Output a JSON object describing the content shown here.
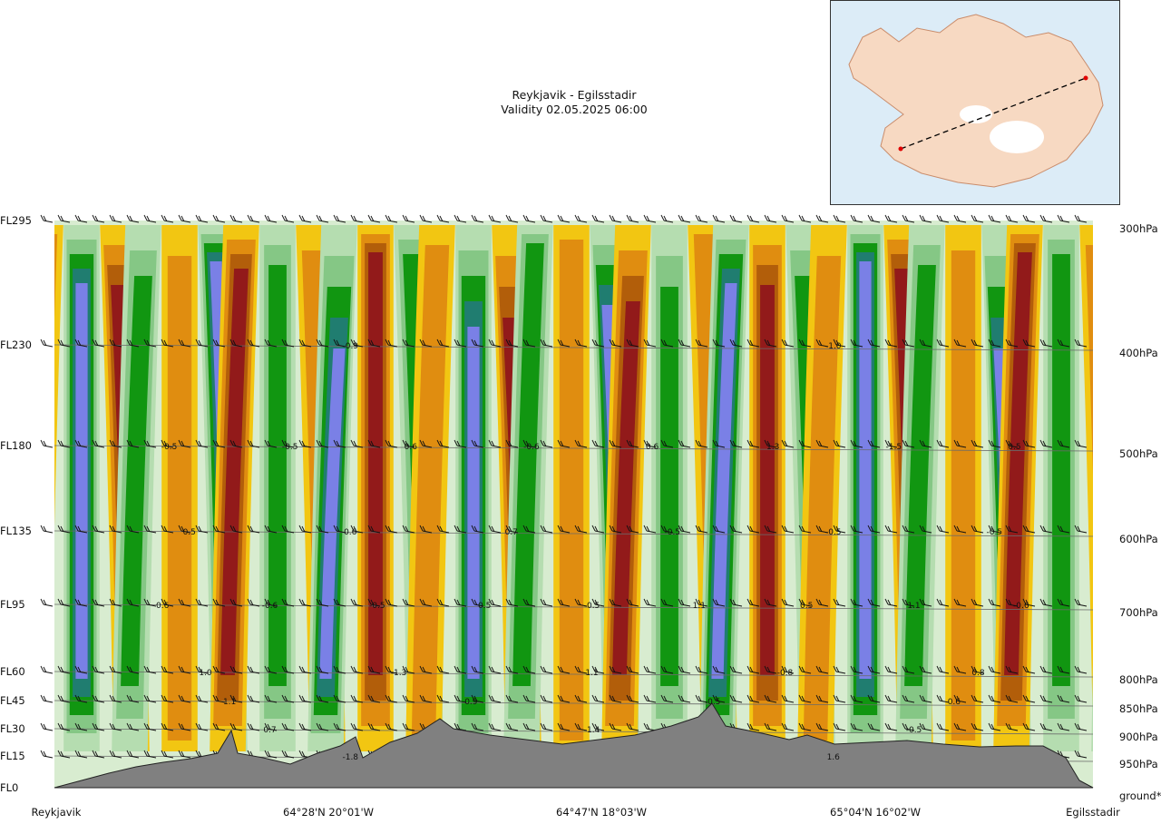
{
  "title": {
    "route": "Reykjavik - Egilsstadir",
    "validity": "Validity 02.05.2025 06:00"
  },
  "chart_data": {
    "type": "heatmap",
    "title": "Reykjavik - Egilsstadir",
    "subtitle": "Validity 02.05.2025 06:00",
    "left_axis_levels": [
      "FL295",
      "FL230",
      "FL180",
      "FL135",
      "FL95",
      "FL60",
      "FL45",
      "FL30",
      "FL15",
      "FL0"
    ],
    "right_axis_levels": [
      "300hPa",
      "400hPa",
      "500hPa",
      "600hPa",
      "700hPa",
      "800hPa",
      "850hPa",
      "900hPa",
      "950hPa",
      "ground*"
    ],
    "x_labels": [
      "Reykjavik",
      "64°28'N 20°01'W",
      "64°47'N 18°03'W",
      "65°04'N 16°02'W",
      "Egilsstadir"
    ],
    "value_labels": [
      {
        "level": "FL230",
        "text": "-0.9"
      },
      {
        "level": "FL230",
        "text": "-1.0"
      },
      {
        "level": "FL180",
        "text": "-0.5"
      },
      {
        "level": "FL180",
        "text": "-0.5"
      },
      {
        "level": "FL180",
        "text": "0.6"
      },
      {
        "level": "FL180",
        "text": "-0.6"
      },
      {
        "level": "FL180",
        "text": "0.6"
      },
      {
        "level": "FL180",
        "text": "1.3"
      },
      {
        "level": "FL180",
        "text": "-1.5"
      },
      {
        "level": "FL180",
        "text": "0.5"
      },
      {
        "level": "FL135",
        "text": "0.5"
      },
      {
        "level": "FL135",
        "text": "0.6"
      },
      {
        "level": "FL135",
        "text": "0.7"
      },
      {
        "level": "FL135",
        "text": "-0.5"
      },
      {
        "level": "FL135",
        "text": "-0.5"
      },
      {
        "level": "FL135",
        "text": "-0.5"
      },
      {
        "level": "FL95",
        "text": "0.6"
      },
      {
        "level": "FL95",
        "text": "-0.6"
      },
      {
        "level": "FL95",
        "text": "-0.5"
      },
      {
        "level": "FL95",
        "text": "0.5"
      },
      {
        "level": "FL95",
        "text": "-0.5"
      },
      {
        "level": "FL95",
        "text": "1.1"
      },
      {
        "level": "FL95",
        "text": "0.5"
      },
      {
        "level": "FL95",
        "text": "1.1"
      },
      {
        "level": "FL95",
        "text": "-0.6"
      },
      {
        "level": "FL60",
        "text": "1.0"
      },
      {
        "level": "FL60",
        "text": "-1.3"
      },
      {
        "level": "FL60",
        "text": "1.1"
      },
      {
        "level": "FL60",
        "text": "-0.8"
      },
      {
        "level": "FL60",
        "text": "0.8"
      },
      {
        "level": "FL45",
        "text": "1.1"
      },
      {
        "level": "FL45",
        "text": "0.9"
      },
      {
        "level": "FL45",
        "text": "-0.5"
      },
      {
        "level": "FL45",
        "text": "0.6"
      },
      {
        "level": "FL30",
        "text": "0.7"
      },
      {
        "level": "FL30",
        "text": "-1.4"
      },
      {
        "level": "FL30",
        "text": "-0.5"
      },
      {
        "level": "FL15",
        "text": "-1.8"
      },
      {
        "level": "FL15",
        "text": "1.6"
      }
    ],
    "colors": {
      "strong_negative": "#921a1a",
      "negative_3": "#b25e0a",
      "negative_2": "#e08d10",
      "negative_1": "#f2c612",
      "negative_0": "#f8eca0",
      "positive_0": "#d8ecd0",
      "positive_1": "#b5ddb0",
      "positive_2": "#85c785",
      "positive_3": "#119611",
      "positive_4": "#207d70",
      "strong_positive": "#7a80e6",
      "ground": "#808080"
    }
  },
  "map": {
    "markers": [
      "red-dot-reykjavik",
      "red-dot-egilsstadir"
    ],
    "sea_color": "#dcecf7",
    "land_color": "#f7d9c2"
  }
}
